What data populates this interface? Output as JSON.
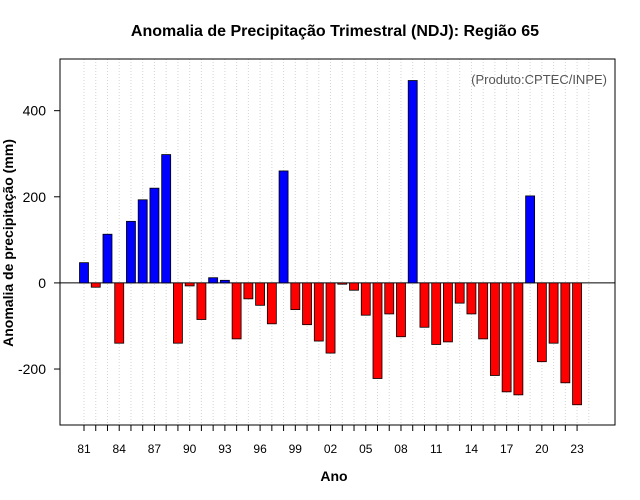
{
  "chart_data": {
    "type": "bar",
    "title": "Anomalia de Precipitação Trimestral (NDJ): Região 65",
    "xlabel": "Ano",
    "ylabel": "Anomalia de precipitação (mm)",
    "annotation": "(Produto:CPTEC/INPE)",
    "ylim": [
      -330,
      520
    ],
    "y_ticks": [
      -200,
      0,
      200,
      400
    ],
    "y_tick_labels": [
      "-200",
      "0",
      "200",
      "400"
    ],
    "x_tick_labels": [
      "81",
      "84",
      "87",
      "90",
      "93",
      "96",
      "99",
      "02",
      "05",
      "08",
      "11",
      "14",
      "17",
      "20",
      "23"
    ],
    "x_tick_every": 3,
    "grid": "vertical-dotted",
    "positive_color": "#0000ff",
    "negative_color": "#ff0000",
    "categories": [
      "1981",
      "1982",
      "1983",
      "1984",
      "1985",
      "1986",
      "1987",
      "1988",
      "1989",
      "1990",
      "1991",
      "1992",
      "1993",
      "1994",
      "1995",
      "1996",
      "1997",
      "1998",
      "1999",
      "2000",
      "2001",
      "2002",
      "2003",
      "2004",
      "2005",
      "2006",
      "2007",
      "2008",
      "2009",
      "2010",
      "2011",
      "2012",
      "2013",
      "2014",
      "2015",
      "2016",
      "2017",
      "2018",
      "2019",
      "2020",
      "2021",
      "2022",
      "2023"
    ],
    "values": [
      47,
      -10,
      113,
      -140,
      143,
      193,
      220,
      298,
      -140,
      -7,
      -85,
      12,
      6,
      -130,
      -37,
      -52,
      -95,
      260,
      -62,
      -97,
      -135,
      -163,
      -3,
      -17,
      -75,
      -222,
      -72,
      -125,
      470,
      -103,
      -143,
      -137,
      -47,
      -72,
      -130,
      -215,
      -253,
      -260,
      202,
      -183,
      -140,
      -232,
      -283
    ]
  }
}
